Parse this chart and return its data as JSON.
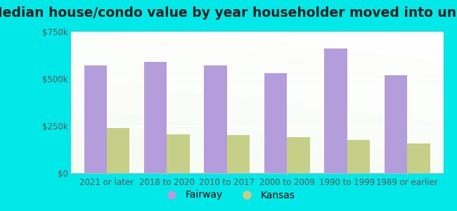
{
  "title": "Median house/condo value by year householder moved into unit",
  "categories": [
    "2021 or later",
    "2018 to 2020",
    "2010 to 2017",
    "2000 to 2009",
    "1990 to 1999",
    "1989 or earlier"
  ],
  "fairway_values": [
    570000,
    590000,
    570000,
    530000,
    660000,
    520000
  ],
  "kansas_values": [
    240000,
    205000,
    200000,
    190000,
    175000,
    155000
  ],
  "fairway_color": "#b39ddb",
  "kansas_color": "#c5cf87",
  "outer_bg": "#00e8e8",
  "plot_bg": "#e8f5e2",
  "ylim": [
    0,
    750000
  ],
  "yticks": [
    0,
    250000,
    500000,
    750000
  ],
  "ytick_labels": [
    "$0",
    "$250k",
    "$500k",
    "$750k"
  ],
  "bar_width": 0.38,
  "title_fontsize": 13.5,
  "tick_fontsize": 8.5,
  "legend_fontsize": 10
}
